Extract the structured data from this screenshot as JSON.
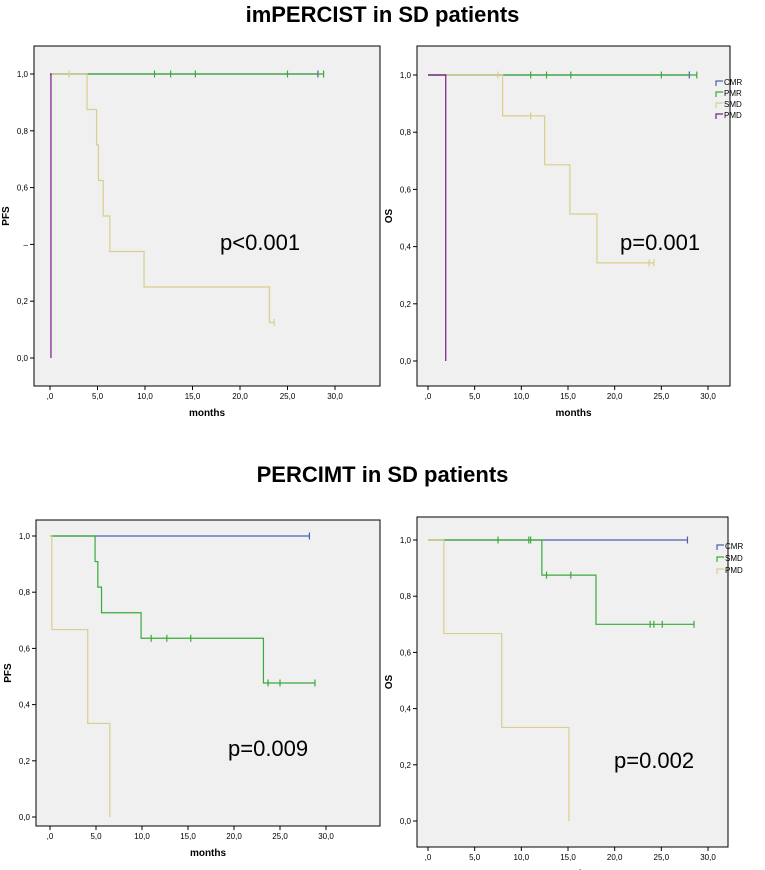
{
  "sections": {
    "top_title": "imPERCIST in SD patients",
    "bottom_title": "PERCIMT in SD patients"
  },
  "chart_data": [
    {
      "type": "line",
      "subtype": "kaplan-meier",
      "id": "impercist-pfs",
      "xlabel": "months",
      "ylabel": "PFS",
      "xlim": [
        0,
        30
      ],
      "ylim": [
        0,
        1
      ],
      "xticks": [
        ",0",
        "5,0",
        "10,0",
        "15,0",
        "20,0",
        "25,0",
        "30,0"
      ],
      "yticks": [
        "0,0",
        "0,2",
        "",
        "0,6",
        "0,8",
        "1,0"
      ],
      "annotation": "p<0.001",
      "legend": [],
      "series": [
        {
          "name": "CMR",
          "color": "#4a5fb0",
          "steps": [
            [
              0,
              1
            ],
            [
              28.2,
              1
            ]
          ],
          "censored": [
            [
              28.2,
              1
            ]
          ]
        },
        {
          "name": "PMR",
          "color": "#3aaa3a",
          "steps": [
            [
              0,
              1
            ],
            [
              28.8,
              1
            ]
          ],
          "censored": [
            [
              11,
              1
            ],
            [
              12.7,
              1
            ],
            [
              15.3,
              1
            ],
            [
              25,
              1
            ],
            [
              28.8,
              1
            ]
          ]
        },
        {
          "name": "SMD",
          "color": "#d8cf8a",
          "steps": [
            [
              0,
              1
            ],
            [
              3.9,
              0.875
            ],
            [
              4.9,
              0.75
            ],
            [
              5.1,
              0.625
            ],
            [
              5.6,
              0.5
            ],
            [
              6.3,
              0.375
            ],
            [
              9.9,
              0.25
            ],
            [
              23.1,
              0.125
            ],
            [
              23.6,
              0.125
            ]
          ],
          "censored": [
            [
              2,
              1
            ],
            [
              23.6,
              0.125
            ]
          ]
        },
        {
          "name": "PMD",
          "color": "#7a1a8a",
          "steps": [
            [
              0,
              1
            ],
            [
              0.1,
              0
            ]
          ],
          "censored": []
        }
      ]
    },
    {
      "type": "line",
      "subtype": "kaplan-meier",
      "id": "impercist-os",
      "xlabel": "months",
      "ylabel": "OS",
      "xlim": [
        0,
        30
      ],
      "ylim": [
        0,
        1
      ],
      "xticks": [
        ",0",
        "5,0",
        "10,0",
        "15,0",
        "20,0",
        "25,0",
        "30,0"
      ],
      "yticks": [
        "0,0",
        "0,2",
        "0,4",
        "0,6",
        "0,8",
        "1,0"
      ],
      "annotation": "p=0.001",
      "legend": [
        "CMR",
        "PMR",
        "SMD",
        "PMD"
      ],
      "series": [
        {
          "name": "CMR",
          "color": "#4a5fb0",
          "steps": [
            [
              0,
              1
            ],
            [
              28,
              1
            ]
          ],
          "censored": [
            [
              28,
              1
            ]
          ]
        },
        {
          "name": "PMR",
          "color": "#3aaa3a",
          "steps": [
            [
              0,
              1
            ],
            [
              28.8,
              1
            ]
          ],
          "censored": [
            [
              11,
              1
            ],
            [
              12.7,
              1
            ],
            [
              15.3,
              1
            ],
            [
              25,
              1
            ],
            [
              28.8,
              1
            ]
          ]
        },
        {
          "name": "SMD",
          "color": "#d8cf8a",
          "steps": [
            [
              0,
              1
            ],
            [
              8,
              0.857
            ],
            [
              12.5,
              0.686
            ],
            [
              15.2,
              0.514
            ],
            [
              18.1,
              0.343
            ],
            [
              24.2,
              0.343
            ]
          ],
          "censored": [
            [
              7.5,
              1
            ],
            [
              11,
              0.857
            ],
            [
              23.7,
              0.343
            ],
            [
              24.2,
              0.343
            ]
          ]
        },
        {
          "name": "PMD",
          "color": "#7a1a8a",
          "steps": [
            [
              0,
              1
            ],
            [
              1.9,
              0
            ]
          ],
          "censored": []
        }
      ]
    },
    {
      "type": "line",
      "subtype": "kaplan-meier",
      "id": "percimt-pfs",
      "xlabel": "months",
      "ylabel": "PFS",
      "xlim": [
        0,
        30
      ],
      "ylim": [
        0,
        1
      ],
      "xticks": [
        ",0",
        "5,0",
        "10,0",
        "15,0",
        "20,0",
        "25,0",
        "30,0"
      ],
      "yticks": [
        "0,0",
        "0,2",
        "0,4",
        "0,6",
        "0,8",
        "1,0"
      ],
      "annotation": "p=0.009",
      "legend": [],
      "series": [
        {
          "name": "CMR",
          "color": "#4a5fb0",
          "steps": [
            [
              0,
              1
            ],
            [
              28.2,
              1
            ]
          ],
          "censored": [
            [
              28.2,
              1
            ]
          ]
        },
        {
          "name": "SMD",
          "color": "#3aaa3a",
          "steps": [
            [
              0,
              1
            ],
            [
              4.9,
              0.909
            ],
            [
              5.2,
              0.818
            ],
            [
              5.6,
              0.727
            ],
            [
              9.9,
              0.636
            ],
            [
              23.2,
              0.477
            ],
            [
              28.8,
              0.477
            ]
          ],
          "censored": [
            [
              11,
              0.636
            ],
            [
              12.7,
              0.636
            ],
            [
              15.3,
              0.636
            ],
            [
              23.7,
              0.477
            ],
            [
              25,
              0.477
            ],
            [
              28.8,
              0.477
            ]
          ]
        },
        {
          "name": "PMD",
          "color": "#d8cf8a",
          "steps": [
            [
              0,
              1
            ],
            [
              0.2,
              0.667
            ],
            [
              4.1,
              0.333
            ],
            [
              6.5,
              0
            ]
          ],
          "censored": []
        }
      ]
    },
    {
      "type": "line",
      "subtype": "kaplan-meier",
      "id": "percimt-os",
      "xlabel": "months",
      "ylabel": "OS",
      "xlim": [
        0,
        30
      ],
      "ylim": [
        0,
        1
      ],
      "xticks": [
        ",0",
        "5,0",
        "10,0",
        "15,0",
        "20,0",
        "25,0",
        "30,0"
      ],
      "yticks": [
        "0,0",
        "0,2",
        "0,4",
        "0,6",
        "0,8",
        "1,0"
      ],
      "annotation": "p=0.002",
      "legend": [
        "CMR",
        "SMD",
        "PMD"
      ],
      "series": [
        {
          "name": "CMR",
          "color": "#4a5fb0",
          "steps": [
            [
              0,
              1
            ],
            [
              27.8,
              1
            ]
          ],
          "censored": [
            [
              27.8,
              1
            ]
          ]
        },
        {
          "name": "SMD",
          "color": "#3aaa3a",
          "steps": [
            [
              0,
              1
            ],
            [
              12.2,
              0.875
            ],
            [
              18,
              0.7
            ],
            [
              28.5,
              0.7
            ]
          ],
          "censored": [
            [
              7.5,
              1
            ],
            [
              10.8,
              1
            ],
            [
              11,
              1
            ],
            [
              12.7,
              0.875
            ],
            [
              15.3,
              0.875
            ],
            [
              23.8,
              0.7
            ],
            [
              24.2,
              0.7
            ],
            [
              25.1,
              0.7
            ],
            [
              28.5,
              0.7
            ]
          ]
        },
        {
          "name": "PMD",
          "color": "#d8cf8a",
          "steps": [
            [
              0,
              1
            ],
            [
              1.7,
              0.667
            ],
            [
              7.9,
              0.333
            ],
            [
              15.1,
              0
            ]
          ],
          "censored": []
        }
      ]
    }
  ]
}
